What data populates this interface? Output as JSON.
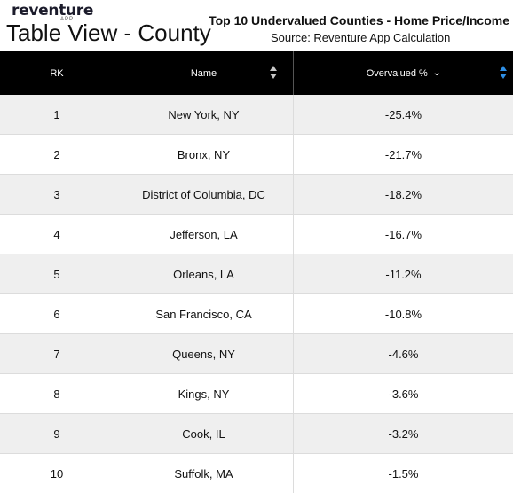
{
  "brand": {
    "name": "reventure",
    "sub": "APP"
  },
  "page_title": "Table View - County",
  "chart_title": "Top 10 Undervalued Counties - Home Price/Income",
  "chart_source": "Source: Reventure App Calculation",
  "table": {
    "columns": [
      {
        "label": "RK"
      },
      {
        "label": "Name"
      },
      {
        "label": "Overvalued %"
      }
    ],
    "rows": [
      {
        "rank": "1",
        "name": "New York, NY",
        "value": "-25.4%"
      },
      {
        "rank": "2",
        "name": "Bronx, NY",
        "value": "-21.7%"
      },
      {
        "rank": "3",
        "name": "District of Columbia, DC",
        "value": "-18.2%"
      },
      {
        "rank": "4",
        "name": "Jefferson, LA",
        "value": "-16.7%"
      },
      {
        "rank": "5",
        "name": "Orleans, LA",
        "value": "-11.2%"
      },
      {
        "rank": "6",
        "name": "San Francisco, CA",
        "value": "-10.8%"
      },
      {
        "rank": "7",
        "name": "Queens, NY",
        "value": "-4.6%"
      },
      {
        "rank": "8",
        "name": "Kings, NY",
        "value": "-3.6%"
      },
      {
        "rank": "9",
        "name": "Cook, IL",
        "value": "-3.2%"
      },
      {
        "rank": "10",
        "name": "Suffolk, MA",
        "value": "-1.5%"
      }
    ]
  },
  "colors": {
    "header_bg": "#000000",
    "row_alt_bg": "#efefef",
    "sort_active": "#2e8fe6"
  },
  "icons": {
    "name_sort": "sort-arrows-icon",
    "value_sort_dir": "chevron-down-icon",
    "value_sort": "sort-arrows-icon"
  }
}
